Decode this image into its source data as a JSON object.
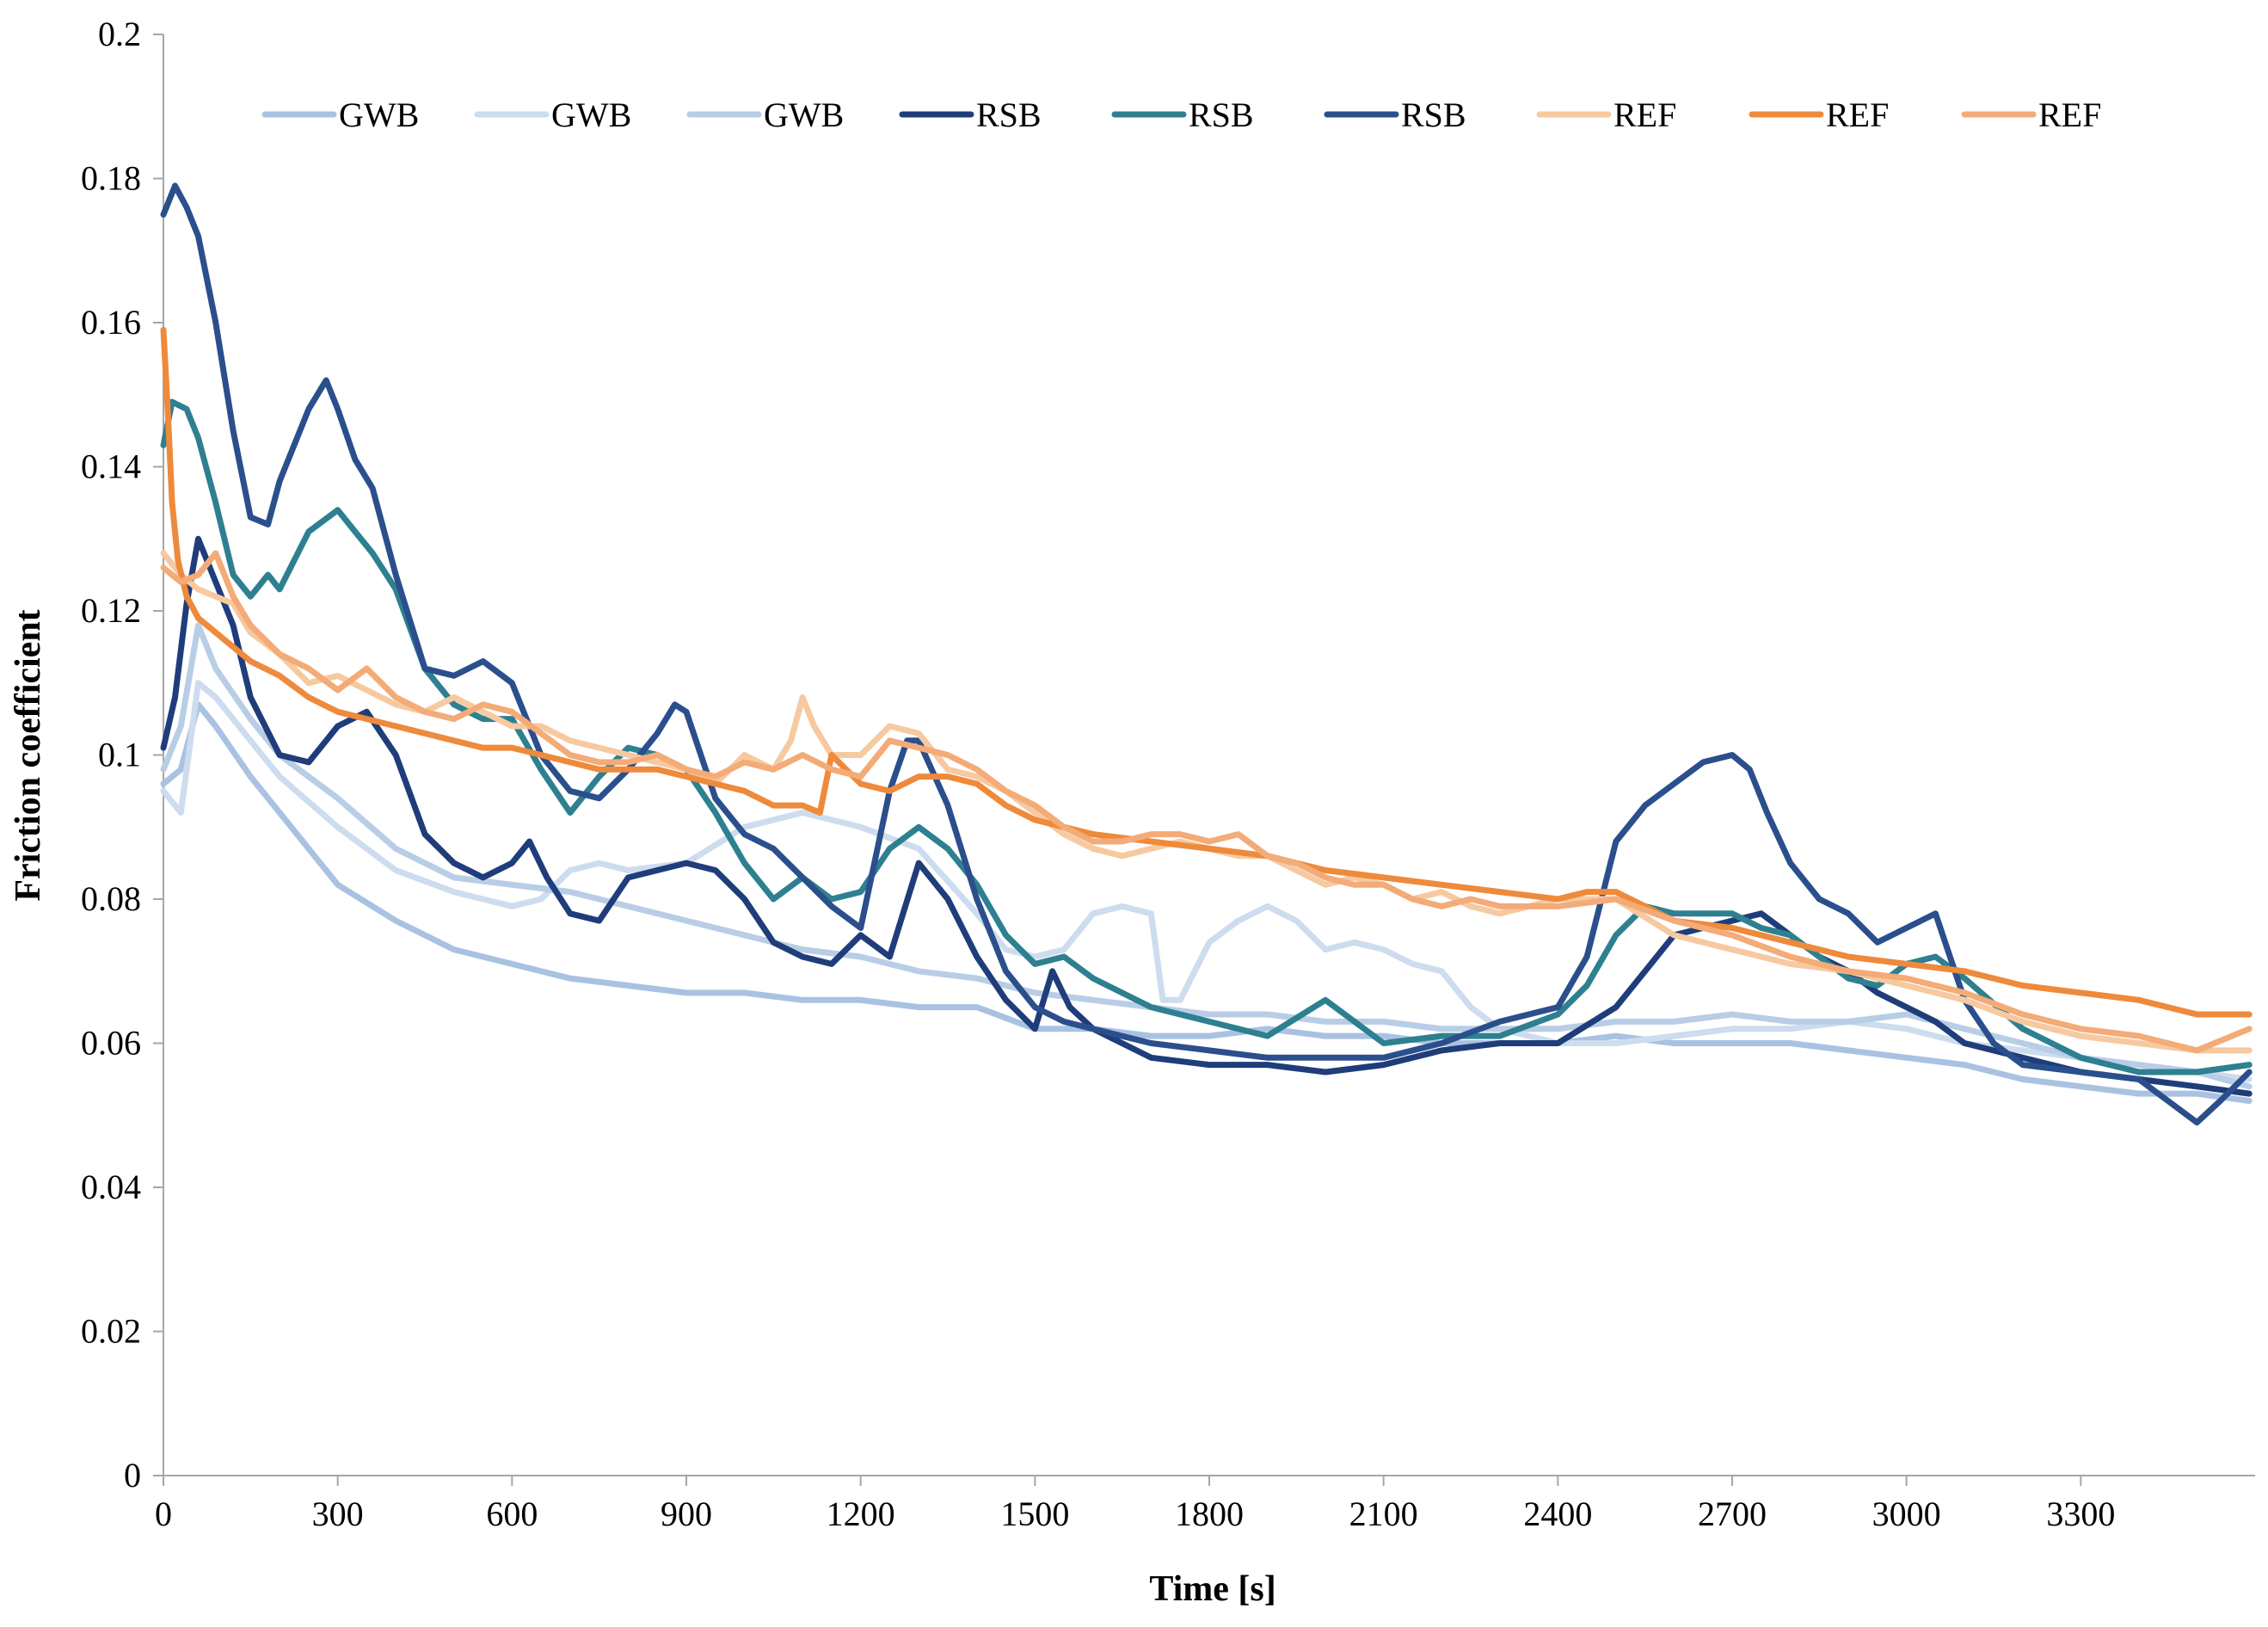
{
  "chart_data": {
    "type": "line",
    "title": "",
    "xlabel": "Time [s]",
    "ylabel": "Friction coefficient",
    "xlim": [
      0,
      3600
    ],
    "ylim": [
      0,
      0.2
    ],
    "xticks": [
      0,
      300,
      600,
      900,
      1200,
      1500,
      1800,
      2100,
      2400,
      2700,
      3000,
      3300
    ],
    "xtick_labels": [
      "0",
      "300",
      "600",
      "900",
      "1200",
      "1500",
      "1800",
      "2100",
      "2400",
      "2700",
      "3000",
      "3300"
    ],
    "yticks": [
      0,
      0.02,
      0.04,
      0.06,
      0.08,
      0.1,
      0.12,
      0.14,
      0.16,
      0.18,
      0.2
    ],
    "ytick_labels": [
      "0",
      "0.02",
      "0.04",
      "0.06",
      "0.08",
      "0.1",
      "0.12",
      "0.14",
      "0.16",
      "0.18",
      "0.2"
    ],
    "grid": false,
    "legend_position": "top",
    "series": [
      {
        "name": "GWB",
        "color": "#a9c2e1",
        "x": [
          0,
          30,
          60,
          90,
          150,
          200,
          300,
          400,
          500,
          600,
          700,
          800,
          900,
          1000,
          1100,
          1200,
          1300,
          1400,
          1500,
          1600,
          1700,
          1800,
          1900,
          2000,
          2100,
          2200,
          2300,
          2400,
          2500,
          2600,
          2700,
          2800,
          2900,
          3000,
          3100,
          3200,
          3300,
          3400,
          3500,
          3590
        ],
        "values": [
          0.096,
          0.098,
          0.107,
          0.104,
          0.097,
          0.092,
          0.082,
          0.077,
          0.073,
          0.071,
          0.069,
          0.068,
          0.067,
          0.067,
          0.066,
          0.066,
          0.065,
          0.065,
          0.062,
          0.062,
          0.061,
          0.061,
          0.062,
          0.061,
          0.061,
          0.06,
          0.06,
          0.06,
          0.061,
          0.06,
          0.06,
          0.06,
          0.059,
          0.058,
          0.057,
          0.055,
          0.054,
          0.053,
          0.053,
          0.052
        ]
      },
      {
        "name": "GWB",
        "color": "#cddcee",
        "x": [
          0,
          30,
          60,
          90,
          150,
          200,
          300,
          400,
          500,
          600,
          650,
          700,
          750,
          800,
          900,
          1000,
          1100,
          1200,
          1300,
          1400,
          1450,
          1500,
          1550,
          1600,
          1650,
          1700,
          1720,
          1750,
          1800,
          1850,
          1900,
          1950,
          2000,
          2050,
          2100,
          2150,
          2200,
          2250,
          2300,
          2400,
          2500,
          2600,
          2700,
          2800,
          2900,
          3000,
          3100,
          3200,
          3300,
          3400,
          3500,
          3590
        ],
        "values": [
          0.095,
          0.092,
          0.11,
          0.108,
          0.102,
          0.097,
          0.09,
          0.084,
          0.081,
          0.079,
          0.08,
          0.084,
          0.085,
          0.084,
          0.085,
          0.09,
          0.092,
          0.09,
          0.087,
          0.078,
          0.073,
          0.072,
          0.073,
          0.078,
          0.079,
          0.078,
          0.066,
          0.066,
          0.074,
          0.077,
          0.079,
          0.077,
          0.073,
          0.074,
          0.073,
          0.071,
          0.07,
          0.065,
          0.062,
          0.06,
          0.06,
          0.061,
          0.062,
          0.062,
          0.063,
          0.062,
          0.06,
          0.059,
          0.058,
          0.057,
          0.056,
          0.055
        ]
      },
      {
        "name": "GWB",
        "color": "#b8cde6",
        "x": [
          0,
          30,
          60,
          90,
          150,
          200,
          300,
          400,
          500,
          600,
          700,
          800,
          900,
          1000,
          1100,
          1200,
          1300,
          1400,
          1500,
          1600,
          1700,
          1800,
          1900,
          2000,
          2100,
          2200,
          2300,
          2400,
          2500,
          2600,
          2700,
          2800,
          2900,
          3000,
          3100,
          3200,
          3300,
          3400,
          3500,
          3590
        ],
        "values": [
          0.098,
          0.104,
          0.118,
          0.112,
          0.105,
          0.1,
          0.094,
          0.087,
          0.083,
          0.082,
          0.081,
          0.079,
          0.077,
          0.075,
          0.073,
          0.072,
          0.07,
          0.069,
          0.067,
          0.066,
          0.065,
          0.064,
          0.064,
          0.063,
          0.063,
          0.062,
          0.062,
          0.062,
          0.063,
          0.063,
          0.064,
          0.063,
          0.063,
          0.064,
          0.062,
          0.06,
          0.058,
          0.057,
          0.056,
          0.054
        ]
      },
      {
        "name": "RSB",
        "color": "#1f3d7a",
        "x": [
          0,
          20,
          40,
          60,
          90,
          120,
          150,
          200,
          250,
          300,
          350,
          400,
          450,
          500,
          550,
          600,
          630,
          660,
          700,
          750,
          800,
          850,
          900,
          950,
          1000,
          1050,
          1100,
          1150,
          1200,
          1250,
          1300,
          1350,
          1400,
          1450,
          1500,
          1530,
          1560,
          1600,
          1700,
          1800,
          1900,
          2000,
          2100,
          2200,
          2300,
          2400,
          2500,
          2550,
          2600,
          2650,
          2700,
          2750,
          2800,
          2850,
          2900,
          2950,
          3000,
          3050,
          3100,
          3200,
          3300,
          3400,
          3500,
          3590
        ],
        "values": [
          0.101,
          0.108,
          0.121,
          0.13,
          0.124,
          0.118,
          0.108,
          0.1,
          0.099,
          0.104,
          0.106,
          0.1,
          0.089,
          0.085,
          0.083,
          0.085,
          0.088,
          0.083,
          0.078,
          0.077,
          0.083,
          0.084,
          0.085,
          0.084,
          0.08,
          0.074,
          0.072,
          0.071,
          0.075,
          0.072,
          0.085,
          0.08,
          0.072,
          0.066,
          0.062,
          0.07,
          0.065,
          0.062,
          0.058,
          0.057,
          0.057,
          0.056,
          0.057,
          0.059,
          0.06,
          0.06,
          0.065,
          0.07,
          0.075,
          0.076,
          0.077,
          0.078,
          0.075,
          0.072,
          0.07,
          0.067,
          0.065,
          0.063,
          0.06,
          0.058,
          0.056,
          0.055,
          0.054,
          0.053
        ]
      },
      {
        "name": "RSB",
        "color": "#2e8090",
        "x": [
          0,
          15,
          40,
          60,
          90,
          120,
          150,
          180,
          200,
          250,
          300,
          330,
          360,
          400,
          450,
          500,
          550,
          600,
          650,
          700,
          750,
          800,
          850,
          900,
          950,
          1000,
          1050,
          1100,
          1150,
          1200,
          1250,
          1300,
          1350,
          1400,
          1450,
          1500,
          1550,
          1600,
          1700,
          1800,
          1900,
          2000,
          2100,
          2200,
          2300,
          2400,
          2450,
          2500,
          2550,
          2600,
          2650,
          2700,
          2750,
          2800,
          2850,
          2900,
          2950,
          3000,
          3050,
          3100,
          3200,
          3300,
          3400,
          3500,
          3590
        ],
        "values": [
          0.143,
          0.149,
          0.148,
          0.144,
          0.135,
          0.125,
          0.122,
          0.125,
          0.123,
          0.131,
          0.134,
          0.131,
          0.128,
          0.123,
          0.112,
          0.107,
          0.105,
          0.105,
          0.098,
          0.092,
          0.097,
          0.101,
          0.1,
          0.098,
          0.092,
          0.085,
          0.08,
          0.083,
          0.08,
          0.081,
          0.087,
          0.09,
          0.087,
          0.082,
          0.075,
          0.071,
          0.072,
          0.069,
          0.065,
          0.063,
          0.061,
          0.066,
          0.06,
          0.061,
          0.061,
          0.064,
          0.068,
          0.075,
          0.079,
          0.078,
          0.078,
          0.078,
          0.076,
          0.075,
          0.072,
          0.069,
          0.068,
          0.071,
          0.072,
          0.069,
          0.062,
          0.058,
          0.056,
          0.056,
          0.057
        ]
      },
      {
        "name": "RSB",
        "color": "#2b4f8c",
        "x": [
          0,
          20,
          40,
          60,
          90,
          120,
          150,
          180,
          200,
          250,
          280,
          300,
          330,
          360,
          400,
          450,
          500,
          550,
          600,
          650,
          700,
          750,
          800,
          850,
          880,
          900,
          950,
          1000,
          1050,
          1100,
          1150,
          1200,
          1250,
          1280,
          1300,
          1350,
          1400,
          1450,
          1500,
          1550,
          1600,
          1700,
          1800,
          1900,
          2000,
          2100,
          2200,
          2300,
          2400,
          2450,
          2500,
          2550,
          2600,
          2650,
          2700,
          2730,
          2760,
          2800,
          2850,
          2900,
          2950,
          3000,
          3050,
          3100,
          3150,
          3200,
          3300,
          3400,
          3450,
          3500,
          3540,
          3590
        ],
        "values": [
          0.175,
          0.179,
          0.176,
          0.172,
          0.16,
          0.145,
          0.133,
          0.132,
          0.138,
          0.148,
          0.152,
          0.148,
          0.141,
          0.137,
          0.125,
          0.112,
          0.111,
          0.113,
          0.11,
          0.1,
          0.095,
          0.094,
          0.098,
          0.103,
          0.107,
          0.106,
          0.094,
          0.089,
          0.087,
          0.083,
          0.079,
          0.076,
          0.095,
          0.102,
          0.102,
          0.093,
          0.08,
          0.07,
          0.065,
          0.063,
          0.062,
          0.06,
          0.059,
          0.058,
          0.058,
          0.058,
          0.06,
          0.063,
          0.065,
          0.072,
          0.088,
          0.093,
          0.096,
          0.099,
          0.1,
          0.098,
          0.092,
          0.085,
          0.08,
          0.078,
          0.074,
          0.076,
          0.078,
          0.066,
          0.06,
          0.057,
          0.056,
          0.055,
          0.052,
          0.049,
          0.052,
          0.056
        ]
      },
      {
        "name": "REF",
        "color": "#f7c9a0",
        "x": [
          0,
          30,
          60,
          90,
          120,
          150,
          200,
          250,
          300,
          350,
          400,
          450,
          500,
          550,
          600,
          650,
          700,
          750,
          800,
          850,
          900,
          950,
          1000,
          1050,
          1080,
          1100,
          1120,
          1150,
          1200,
          1250,
          1300,
          1350,
          1400,
          1450,
          1500,
          1550,
          1600,
          1650,
          1700,
          1750,
          1800,
          1850,
          1900,
          1950,
          2000,
          2050,
          2100,
          2150,
          2200,
          2250,
          2300,
          2400,
          2500,
          2600,
          2700,
          2800,
          2900,
          3000,
          3100,
          3200,
          3300,
          3400,
          3500,
          3590
        ],
        "values": [
          0.128,
          0.125,
          0.123,
          0.122,
          0.121,
          0.117,
          0.114,
          0.11,
          0.111,
          0.109,
          0.107,
          0.106,
          0.108,
          0.106,
          0.104,
          0.104,
          0.102,
          0.101,
          0.1,
          0.099,
          0.098,
          0.096,
          0.1,
          0.098,
          0.102,
          0.108,
          0.104,
          0.1,
          0.1,
          0.104,
          0.103,
          0.098,
          0.097,
          0.095,
          0.092,
          0.089,
          0.087,
          0.086,
          0.087,
          0.088,
          0.087,
          0.086,
          0.086,
          0.084,
          0.082,
          0.083,
          0.082,
          0.08,
          0.081,
          0.079,
          0.078,
          0.08,
          0.08,
          0.075,
          0.073,
          0.071,
          0.07,
          0.068,
          0.066,
          0.063,
          0.061,
          0.06,
          0.059,
          0.059
        ]
      },
      {
        "name": "REF",
        "color": "#ee8a3c",
        "x": [
          0,
          8,
          15,
          25,
          40,
          60,
          90,
          120,
          150,
          200,
          250,
          300,
          350,
          400,
          450,
          500,
          550,
          600,
          650,
          700,
          750,
          800,
          850,
          900,
          950,
          1000,
          1050,
          1100,
          1130,
          1150,
          1200,
          1250,
          1300,
          1350,
          1400,
          1450,
          1500,
          1550,
          1600,
          1700,
          1800,
          1900,
          2000,
          2100,
          2200,
          2300,
          2400,
          2450,
          2500,
          2550,
          2600,
          2700,
          2800,
          2900,
          3000,
          3100,
          3200,
          3300,
          3400,
          3500,
          3590
        ],
        "values": [
          0.159,
          0.147,
          0.135,
          0.127,
          0.122,
          0.119,
          0.117,
          0.115,
          0.113,
          0.111,
          0.108,
          0.106,
          0.105,
          0.104,
          0.103,
          0.102,
          0.101,
          0.101,
          0.1,
          0.099,
          0.098,
          0.098,
          0.098,
          0.097,
          0.096,
          0.095,
          0.093,
          0.093,
          0.092,
          0.1,
          0.096,
          0.095,
          0.097,
          0.097,
          0.096,
          0.093,
          0.091,
          0.09,
          0.089,
          0.088,
          0.087,
          0.086,
          0.084,
          0.083,
          0.082,
          0.081,
          0.08,
          0.081,
          0.081,
          0.079,
          0.077,
          0.076,
          0.074,
          0.072,
          0.071,
          0.07,
          0.068,
          0.067,
          0.066,
          0.064,
          0.064
        ]
      },
      {
        "name": "REF",
        "color": "#f3ab78",
        "x": [
          0,
          30,
          60,
          90,
          120,
          150,
          200,
          250,
          300,
          350,
          400,
          450,
          500,
          550,
          600,
          650,
          700,
          750,
          800,
          850,
          900,
          950,
          1000,
          1050,
          1100,
          1150,
          1200,
          1250,
          1300,
          1350,
          1400,
          1450,
          1500,
          1550,
          1600,
          1650,
          1700,
          1750,
          1800,
          1850,
          1900,
          1950,
          2000,
          2050,
          2100,
          2150,
          2200,
          2250,
          2300,
          2400,
          2500,
          2600,
          2700,
          2800,
          2900,
          3000,
          3100,
          3200,
          3300,
          3400,
          3500,
          3590
        ],
        "values": [
          0.126,
          0.124,
          0.125,
          0.128,
          0.122,
          0.118,
          0.114,
          0.112,
          0.109,
          0.112,
          0.108,
          0.106,
          0.105,
          0.107,
          0.106,
          0.103,
          0.1,
          0.099,
          0.099,
          0.1,
          0.098,
          0.097,
          0.099,
          0.098,
          0.1,
          0.098,
          0.097,
          0.102,
          0.101,
          0.1,
          0.098,
          0.095,
          0.093,
          0.09,
          0.088,
          0.088,
          0.089,
          0.089,
          0.088,
          0.089,
          0.086,
          0.085,
          0.083,
          0.082,
          0.082,
          0.08,
          0.079,
          0.08,
          0.079,
          0.079,
          0.08,
          0.077,
          0.075,
          0.072,
          0.07,
          0.069,
          0.067,
          0.064,
          0.062,
          0.061,
          0.059,
          0.062
        ]
      }
    ]
  }
}
